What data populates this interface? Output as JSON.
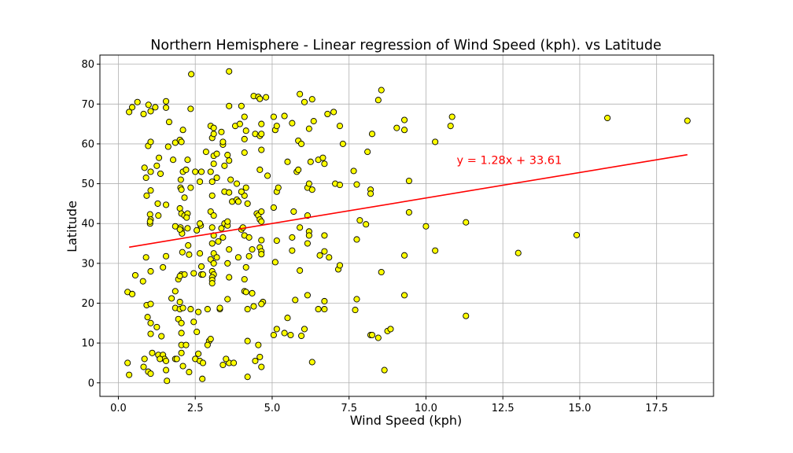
{
  "chart_data": {
    "type": "scatter",
    "title": "Northern Hemisphere - Linear regression of Wind Speed (kph). vs Latitude",
    "xlabel": "Wind Speed (kph)",
    "ylabel": "Latitude",
    "xlim": [
      -0.6,
      19.35
    ],
    "ylim": [
      -3.4,
      82.3
    ],
    "xticks": [
      0.0,
      2.5,
      5.0,
      7.5,
      10.0,
      12.5,
      15.0,
      17.5
    ],
    "xtick_labels": [
      "0.0",
      "2.5",
      "5.0",
      "7.5",
      "10.0",
      "12.5",
      "15.0",
      "17.5"
    ],
    "yticks": [
      0,
      10,
      20,
      30,
      40,
      50,
      60,
      70,
      80
    ],
    "ytick_labels": [
      "0",
      "10",
      "20",
      "30",
      "40",
      "50",
      "60",
      "70",
      "80"
    ],
    "grid": true,
    "marker_color": "#ffff00",
    "marker_edge": "#000000",
    "regression": {
      "slope": 1.28,
      "intercept": 33.61,
      "x_range": [
        0.35,
        18.5
      ],
      "color": "#ff0000",
      "equation": "y = 1.28x + 33.61",
      "equation_x": 11.0,
      "equation_y": 55.0
    },
    "points": [
      [
        0.35,
        68
      ],
      [
        0.45,
        69.2
      ],
      [
        0.62,
        70.5
      ],
      [
        0.82,
        67.5
      ],
      [
        0.98,
        69.8
      ],
      [
        1.05,
        68.2
      ],
      [
        1.2,
        69.2
      ],
      [
        1.55,
        70.7
      ],
      [
        1.55,
        69.1
      ],
      [
        0.85,
        54
      ],
      [
        1.05,
        53
      ],
      [
        1.25,
        54.5
      ],
      [
        1.32,
        56.5
      ],
      [
        1.37,
        52.5
      ],
      [
        0.97,
        59.5
      ],
      [
        1.05,
        60.5
      ],
      [
        1.65,
        65.5
      ],
      [
        1.85,
        60.3
      ],
      [
        2.0,
        61
      ],
      [
        2.05,
        60.5
      ],
      [
        2.1,
        63.5
      ],
      [
        1.62,
        59.3
      ],
      [
        1.78,
        56
      ],
      [
        2.03,
        51
      ],
      [
        2.1,
        53
      ],
      [
        2.2,
        53.5
      ],
      [
        2.25,
        56
      ],
      [
        2.35,
        49
      ],
      [
        2.35,
        68.8
      ],
      [
        2.37,
        77.5
      ],
      [
        0.9,
        51.5
      ],
      [
        0.92,
        47
      ],
      [
        1.05,
        48.3
      ],
      [
        1.03,
        42.3
      ],
      [
        1.05,
        41
      ],
      [
        1.03,
        40
      ],
      [
        1.03,
        40.5
      ],
      [
        1.28,
        45
      ],
      [
        1.3,
        42
      ],
      [
        1.55,
        44.7
      ],
      [
        2.02,
        49
      ],
      [
        2.05,
        48.5
      ],
      [
        2.15,
        46.5
      ],
      [
        2.0,
        43.8
      ],
      [
        2.05,
        42.5
      ],
      [
        2.15,
        42
      ],
      [
        2.25,
        42.5
      ],
      [
        2.22,
        41.5
      ],
      [
        1.85,
        39.3
      ],
      [
        2.02,
        39
      ],
      [
        2.05,
        38.2
      ],
      [
        2.07,
        37.5
      ],
      [
        2.0,
        38.5
      ],
      [
        2.25,
        38.8
      ],
      [
        2.27,
        34.5
      ],
      [
        2.3,
        32.2
      ],
      [
        2.08,
        32.8
      ],
      [
        2.55,
        38.3
      ],
      [
        2.68,
        39.5
      ],
      [
        2.65,
        40
      ],
      [
        2.5,
        53
      ],
      [
        2.7,
        53
      ],
      [
        2.65,
        50.5
      ],
      [
        0.9,
        31.5
      ],
      [
        1.05,
        28
      ],
      [
        1.45,
        29
      ],
      [
        1.55,
        31.8
      ],
      [
        2.05,
        27.2
      ],
      [
        2.15,
        27.2
      ],
      [
        2.45,
        27.5
      ],
      [
        2.7,
        27.2
      ],
      [
        2.75,
        27.2
      ],
      [
        2.7,
        29.2
      ],
      [
        2.65,
        32.5
      ],
      [
        0.55,
        27
      ],
      [
        0.8,
        25.5
      ],
      [
        1.95,
        26
      ],
      [
        2.0,
        26.8
      ],
      [
        1.73,
        21.2
      ],
      [
        1.85,
        23
      ],
      [
        2.0,
        20.3
      ],
      [
        0.3,
        22.8
      ],
      [
        0.45,
        22.3
      ],
      [
        0.92,
        19.5
      ],
      [
        1.05,
        19.8
      ],
      [
        0.95,
        16.5
      ],
      [
        1.05,
        15
      ],
      [
        1.25,
        14
      ],
      [
        1.05,
        12.3
      ],
      [
        1.4,
        11.7
      ],
      [
        1.85,
        18.8
      ],
      [
        2.0,
        18.5
      ],
      [
        2.1,
        18.8
      ],
      [
        2.35,
        18.5
      ],
      [
        1.95,
        16
      ],
      [
        2.05,
        15
      ],
      [
        2.45,
        15.3
      ],
      [
        2.55,
        12.8
      ],
      [
        2.05,
        12.5
      ],
      [
        2.05,
        9.5
      ],
      [
        2.2,
        9.5
      ],
      [
        2.6,
        17.8
      ],
      [
        1.3,
        7
      ],
      [
        1.45,
        7
      ],
      [
        1.5,
        6
      ],
      [
        1.35,
        6
      ],
      [
        1.1,
        7.5
      ],
      [
        1.55,
        5.5
      ],
      [
        1.55,
        3.2
      ],
      [
        1.58,
        0.5
      ],
      [
        1.85,
        6
      ],
      [
        1.9,
        6
      ],
      [
        2.05,
        7.5
      ],
      [
        2.1,
        4.2
      ],
      [
        2.3,
        2.7
      ],
      [
        2.5,
        6
      ],
      [
        2.6,
        7.3
      ],
      [
        2.65,
        5.5
      ],
      [
        2.75,
        5
      ],
      [
        2.73,
        1
      ],
      [
        0.3,
        5
      ],
      [
        0.35,
        2
      ],
      [
        0.82,
        4
      ],
      [
        0.85,
        6
      ],
      [
        0.97,
        2.8
      ],
      [
        1.05,
        2.3
      ],
      [
        2.85,
        58
      ],
      [
        3.0,
        64.5
      ],
      [
        3.1,
        64
      ],
      [
        3.05,
        61.5
      ],
      [
        3.1,
        62.5
      ],
      [
        3.35,
        63
      ],
      [
        3.4,
        59.8
      ],
      [
        3.4,
        60.5
      ],
      [
        3.0,
        53
      ],
      [
        3.1,
        55
      ],
      [
        3.1,
        57
      ],
      [
        3.2,
        57.5
      ],
      [
        3.45,
        54.5
      ],
      [
        3.6,
        55.8
      ],
      [
        3.55,
        57.2
      ],
      [
        3.05,
        50.5
      ],
      [
        3.2,
        51.5
      ],
      [
        3.05,
        47
      ],
      [
        3.45,
        48
      ],
      [
        3.6,
        47.8
      ],
      [
        3.65,
        51
      ],
      [
        3.85,
        50
      ],
      [
        3.7,
        45.5
      ],
      [
        3.85,
        46
      ],
      [
        3.9,
        45.5
      ],
      [
        4.1,
        47
      ],
      [
        4.2,
        45
      ],
      [
        4.15,
        49
      ],
      [
        4.0,
        48
      ],
      [
        3.0,
        43
      ],
      [
        3.1,
        42
      ],
      [
        3.05,
        39
      ],
      [
        3.45,
        40
      ],
      [
        3.55,
        39.5
      ],
      [
        3.35,
        38.8
      ],
      [
        3.55,
        40.5
      ],
      [
        3.1,
        37
      ],
      [
        3.25,
        35.5
      ],
      [
        3.4,
        36.5
      ],
      [
        3.05,
        35
      ],
      [
        3.1,
        32.5
      ],
      [
        3.2,
        31.5
      ],
      [
        3.6,
        33.5
      ],
      [
        3.55,
        30
      ],
      [
        3.9,
        31.5
      ],
      [
        4.0,
        38.5
      ],
      [
        4.1,
        37
      ],
      [
        4.05,
        39
      ],
      [
        4.25,
        31.8
      ],
      [
        4.35,
        33.5
      ],
      [
        4.25,
        36.5
      ],
      [
        3.0,
        31
      ],
      [
        3.1,
        30
      ],
      [
        3.05,
        28
      ],
      [
        3.1,
        27.2
      ],
      [
        3.05,
        26.5
      ],
      [
        3.05,
        25.8
      ],
      [
        3.05,
        25
      ],
      [
        3.6,
        26.5
      ],
      [
        3.55,
        21
      ],
      [
        2.9,
        18.5
      ],
      [
        3.3,
        18.5
      ],
      [
        3.3,
        18.8
      ],
      [
        2.95,
        10.5
      ],
      [
        3.0,
        11
      ],
      [
        2.9,
        9.5
      ],
      [
        3.4,
        4.5
      ],
      [
        3.6,
        5
      ],
      [
        3.75,
        5
      ],
      [
        3.5,
        6
      ],
      [
        4.1,
        26
      ],
      [
        4.1,
        23
      ],
      [
        4.15,
        29
      ],
      [
        4.2,
        18.5
      ],
      [
        4.4,
        19.2
      ],
      [
        4.2,
        10.5
      ],
      [
        4.15,
        22.8
      ],
      [
        4.35,
        22.5
      ],
      [
        3.8,
        64.5
      ],
      [
        3.95,
        65
      ],
      [
        4.1,
        66.8
      ],
      [
        4.15,
        63.3
      ],
      [
        4.1,
        61.2
      ],
      [
        4.0,
        69.5
      ],
      [
        3.6,
        78.2
      ],
      [
        3.6,
        69.5
      ],
      [
        4.1,
        57.8
      ],
      [
        4.4,
        72
      ],
      [
        4.55,
        71.8
      ],
      [
        4.6,
        71.3
      ],
      [
        4.8,
        71.7
      ],
      [
        4.65,
        65
      ],
      [
        4.45,
        62.5
      ],
      [
        4.6,
        62
      ],
      [
        4.65,
        62.5
      ],
      [
        4.65,
        58.5
      ],
      [
        4.6,
        53.5
      ],
      [
        4.5,
        42.5
      ],
      [
        4.55,
        42
      ],
      [
        4.6,
        41
      ],
      [
        4.65,
        43
      ],
      [
        4.65,
        40.5
      ],
      [
        4.65,
        35.8
      ],
      [
        4.6,
        34
      ],
      [
        4.65,
        33
      ],
      [
        4.65,
        32.3
      ],
      [
        4.7,
        20.3
      ],
      [
        4.65,
        19.8
      ],
      [
        4.55,
        9.5
      ],
      [
        4.45,
        5.5
      ],
      [
        4.6,
        6.5
      ],
      [
        4.65,
        4
      ],
      [
        4.2,
        1.5
      ],
      [
        4.85,
        52
      ],
      [
        5.05,
        66.8
      ],
      [
        5.1,
        63.5
      ],
      [
        5.15,
        64.5
      ],
      [
        5.4,
        67
      ],
      [
        5.65,
        65.2
      ],
      [
        5.85,
        60.8
      ],
      [
        5.9,
        72.5
      ],
      [
        6.05,
        70.5
      ],
      [
        6.3,
        71.2
      ],
      [
        6.2,
        63.8
      ],
      [
        6.35,
        65.7
      ],
      [
        5.95,
        60
      ],
      [
        5.15,
        48
      ],
      [
        5.2,
        49
      ],
      [
        5.5,
        55.5
      ],
      [
        5.8,
        53
      ],
      [
        5.85,
        53.5
      ],
      [
        6.15,
        49
      ],
      [
        6.25,
        55.5
      ],
      [
        6.3,
        48.5
      ],
      [
        6.2,
        50
      ],
      [
        6.5,
        56
      ],
      [
        6.7,
        55
      ],
      [
        6.8,
        67.5
      ],
      [
        7.0,
        68
      ],
      [
        7.2,
        64.5
      ],
      [
        6.65,
        56.5
      ],
      [
        5.05,
        44
      ],
      [
        5.7,
        43
      ],
      [
        5.15,
        35.7
      ],
      [
        5.65,
        36.5
      ],
      [
        5.1,
        30.3
      ],
      [
        5.65,
        33.2
      ],
      [
        5.9,
        39
      ],
      [
        6.15,
        42
      ],
      [
        6.2,
        38
      ],
      [
        6.2,
        37
      ],
      [
        6.15,
        35
      ],
      [
        6.55,
        32
      ],
      [
        6.7,
        33
      ],
      [
        6.7,
        37
      ],
      [
        6.85,
        31.5
      ],
      [
        7.15,
        28.5
      ],
      [
        7.2,
        29.5
      ],
      [
        7.05,
        50
      ],
      [
        7.2,
        49.7
      ],
      [
        7.3,
        60
      ],
      [
        5.9,
        28.2
      ],
      [
        5.75,
        20.8
      ],
      [
        6.15,
        22
      ],
      [
        6.7,
        20.5
      ],
      [
        6.5,
        18.5
      ],
      [
        6.7,
        18.5
      ],
      [
        5.05,
        12
      ],
      [
        5.15,
        13.5
      ],
      [
        5.4,
        12.5
      ],
      [
        5.6,
        12
      ],
      [
        5.95,
        11.8
      ],
      [
        6.05,
        13.5
      ],
      [
        5.5,
        16.3
      ],
      [
        6.3,
        5.2
      ],
      [
        7.65,
        53.2
      ],
      [
        7.85,
        40.8
      ],
      [
        7.75,
        49.8
      ],
      [
        8.2,
        48.5
      ],
      [
        8.2,
        47.5
      ],
      [
        8.05,
        39.8
      ],
      [
        7.75,
        36
      ],
      [
        7.75,
        21
      ],
      [
        7.7,
        18.3
      ],
      [
        8.2,
        12
      ],
      [
        8.25,
        12
      ],
      [
        8.45,
        11.3
      ],
      [
        8.75,
        13
      ],
      [
        8.85,
        13.5
      ],
      [
        8.65,
        3.2
      ],
      [
        8.55,
        27.8
      ],
      [
        8.45,
        71
      ],
      [
        8.55,
        73.5
      ],
      [
        8.1,
        58
      ],
      [
        8.25,
        62.5
      ],
      [
        9.05,
        64
      ],
      [
        9.3,
        63.5
      ],
      [
        9.3,
        66
      ],
      [
        9.45,
        50.7
      ],
      [
        9.45,
        42.8
      ],
      [
        9.3,
        32
      ],
      [
        9.3,
        22
      ],
      [
        10.0,
        39.3
      ],
      [
        10.3,
        60.5
      ],
      [
        10.3,
        33.2
      ],
      [
        10.8,
        64.5
      ],
      [
        10.85,
        66.8
      ],
      [
        11.3,
        40.3
      ],
      [
        11.3,
        16.8
      ],
      [
        13.0,
        32.6
      ],
      [
        14.9,
        37.1
      ],
      [
        15.9,
        66.5
      ],
      [
        18.5,
        65.8
      ]
    ]
  }
}
